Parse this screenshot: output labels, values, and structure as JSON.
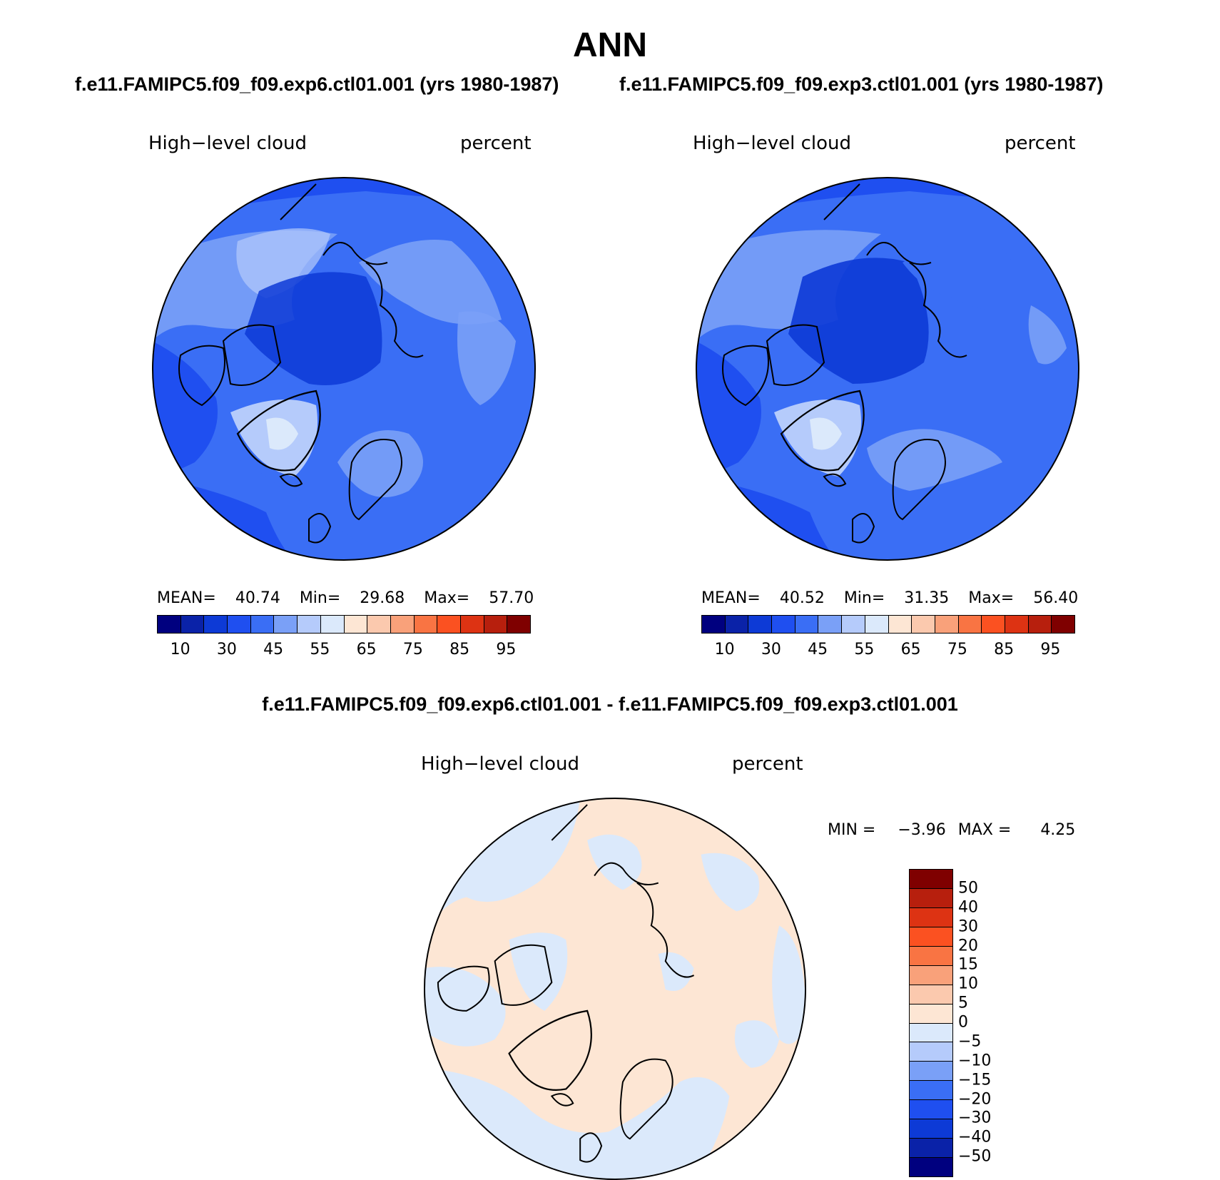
{
  "title": "ANN",
  "panels": [
    {
      "subtitle": "f.e11.FAMIPC5.f09_f09.exp6.ctl01.001 (yrs 1980-1987)",
      "left_label": "High−level cloud",
      "right_label": "percent",
      "stats": {
        "mean_label": "MEAN=",
        "mean": "40.74",
        "min_label": "Min=",
        "min": "29.68",
        "max_label": "Max=",
        "max": "57.70"
      }
    },
    {
      "subtitle": "f.e11.FAMIPC5.f09_f09.exp3.ctl01.001 (yrs 1980-1987)",
      "left_label": "High−level cloud",
      "right_label": "percent",
      "stats": {
        "mean_label": "MEAN=",
        "mean": "40.52",
        "min_label": "Min=",
        "min": "31.35",
        "max_label": "Max=",
        "max": "56.40"
      }
    }
  ],
  "colorbar": {
    "colors": [
      "#00007f",
      "#0a22a8",
      "#0d3ad6",
      "#1f4ff0",
      "#3a6ef5",
      "#7aa0f7",
      "#b5cbfb",
      "#dbe9fb",
      "#fde6d4",
      "#fbc9ae",
      "#f9a17a",
      "#f97443",
      "#fb5121",
      "#dd3313",
      "#b71f0d",
      "#7f0000"
    ],
    "tick_labels": [
      "10",
      "30",
      "45",
      "55",
      "65",
      "75",
      "85",
      "95"
    ]
  },
  "diff_panel": {
    "subtitle": "f.e11.FAMIPC5.f09_f09.exp6.ctl01.001 - f.e11.FAMIPC5.f09_f09.exp3.ctl01.001",
    "left_label": "High−level cloud",
    "right_label": "percent",
    "stats": {
      "min_label": "MIN =",
      "min": "−3.96",
      "max_label": "MAX =",
      "max": "4.25"
    },
    "colorbar": {
      "colors": [
        "#7f0000",
        "#b71f0d",
        "#dd3313",
        "#fb5121",
        "#f97443",
        "#f9a17a",
        "#fbc9ae",
        "#fde6d4",
        "#dbe9fb",
        "#b5cbfb",
        "#7aa0f7",
        "#3a6ef5",
        "#1f4ff0",
        "#0d3ad6",
        "#0a22a8",
        "#00007f"
      ],
      "tick_labels": [
        "50",
        "40",
        "30",
        "20",
        "15",
        "10",
        "5",
        "0",
        "−5",
        "−10",
        "−15",
        "−20",
        "−30",
        "−40",
        "−50"
      ]
    }
  }
}
